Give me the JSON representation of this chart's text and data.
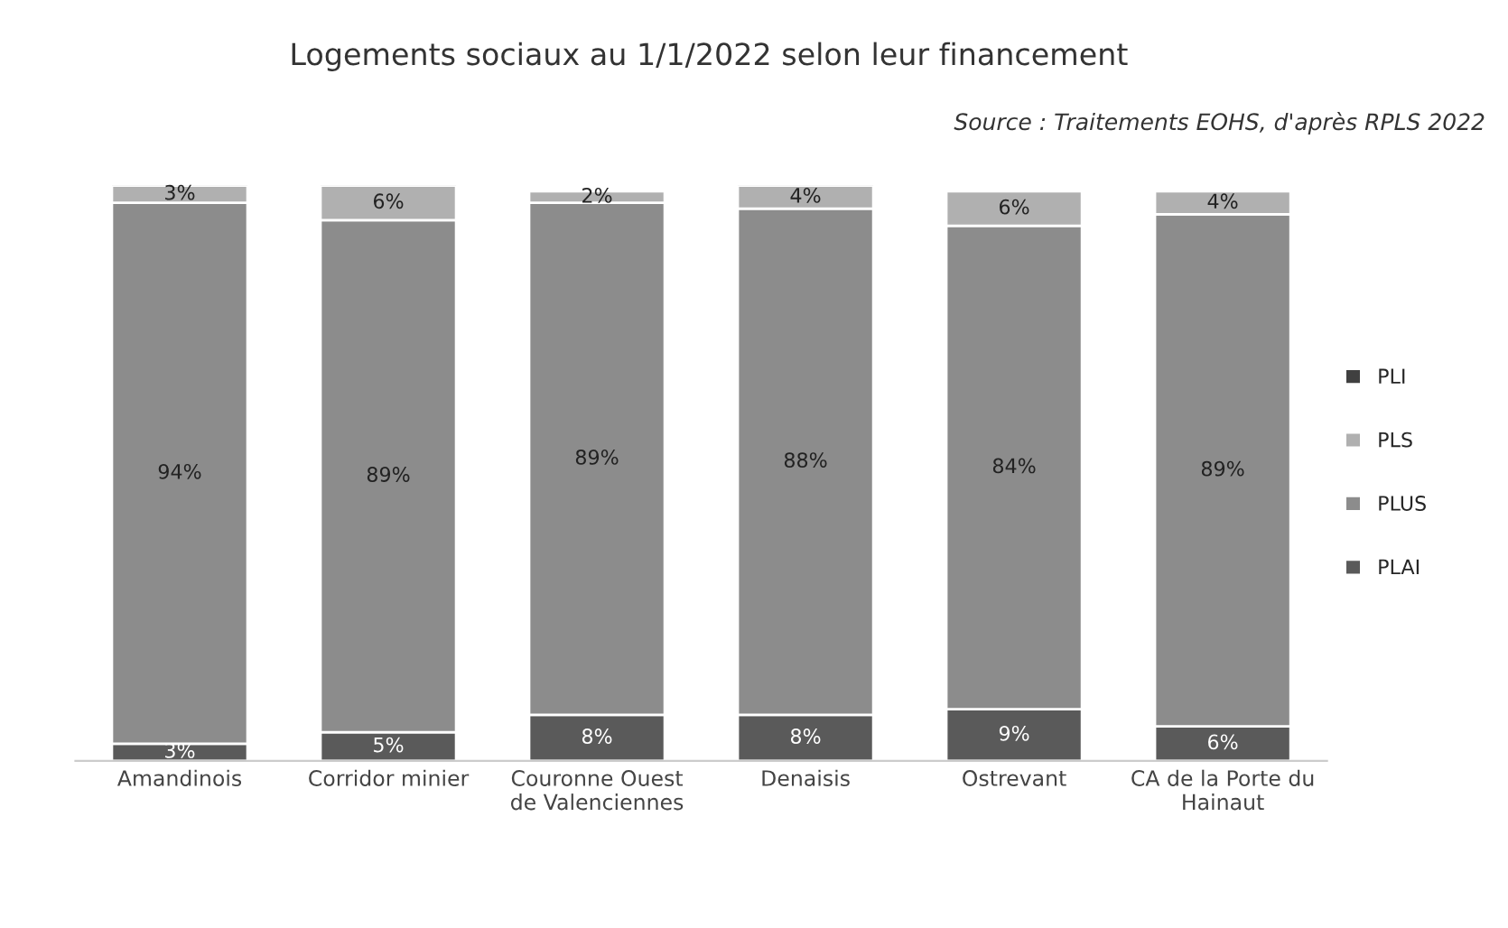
{
  "chart_data": {
    "type": "bar",
    "stacked": true,
    "title": "Logements sociaux au 1/1/2022 selon leur financement",
    "annotations": [
      "Source : Traitements EOHS, d'après RPLS 2022"
    ],
    "categories": [
      "Amandinois",
      "Corridor minier",
      "Couronne Ouest\nde Valenciennes",
      "Denaisis",
      "Ostrevant",
      "CA de la Porte du\nHainaut"
    ],
    "series": [
      {
        "name": "PLAI",
        "color": "#5a5a5a",
        "values": [
          3,
          5,
          8,
          8,
          9,
          6
        ],
        "value_labels": [
          "3%",
          "5%",
          "8%",
          "8%",
          "9%",
          "6%"
        ]
      },
      {
        "name": "PLUS",
        "color": "#8c8c8c",
        "values": [
          94,
          89,
          89,
          88,
          84,
          89
        ],
        "value_labels": [
          "94%",
          "89%",
          "89%",
          "88%",
          "84%",
          "89%"
        ]
      },
      {
        "name": "PLS",
        "color": "#b0b0b0",
        "values": [
          3,
          6,
          2,
          4,
          6,
          4
        ],
        "value_labels": [
          "3%",
          "6%",
          "2%",
          "4%",
          "6%",
          "4%"
        ]
      },
      {
        "name": "PLI",
        "color": "#404040",
        "values": [
          null,
          null,
          null,
          null,
          null,
          null
        ]
      }
    ],
    "legend": "right",
    "tick_labels": "x",
    "grid": false
  }
}
